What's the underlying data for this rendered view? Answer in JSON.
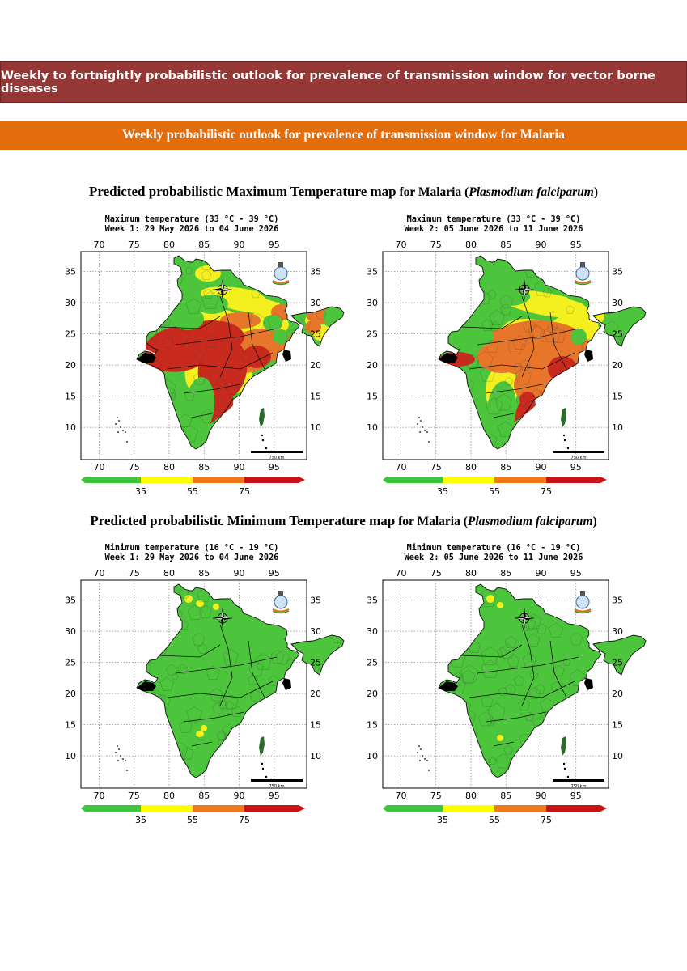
{
  "header": {
    "banner_title": "Weekly to fortnightly probabilistic outlook for prevalence of transmission window for vector borne diseases",
    "sub_banner": "Weekly probabilistic outlook for prevalence of transmission window for Malaria"
  },
  "sections": [
    {
      "title_main": "Predicted probabilistic Maximum Temperature map",
      "title_for": " for Malaria (",
      "title_species": "Plasmodium falciparum",
      "title_close": ")",
      "maps": [
        {
          "line1": "Maximum temperature (33 °C - 39 °C)",
          "line2": "Week 1: 29 May 2026 to 04 June 2026",
          "variant": "max1"
        },
        {
          "line1": "Maximum temperature (33 °C - 39 °C)",
          "line2": "Week 2: 05 June 2026 to 11 June 2026",
          "variant": "max2"
        }
      ]
    },
    {
      "title_main": "Predicted probabilistic Minimum Temperature map",
      "title_for": " for Malaria (",
      "title_species": "Plasmodium falciparum",
      "title_close": ")",
      "maps": [
        {
          "line1": "Minimum temperature (16 °C - 19 °C)",
          "line2": "Week 1: 29 May 2026 to 04 June 2026",
          "variant": "min1"
        },
        {
          "line1": "Minimum temperature (16 °C - 19 °C)",
          "line2": "Week 2: 05 June 2026 to 11 June 2026",
          "variant": "min2"
        }
      ]
    }
  ],
  "map_axes": {
    "lon_ticks": [
      "70",
      "75",
      "80",
      "85",
      "90",
      "95"
    ],
    "lat_ticks": [
      "35",
      "30",
      "25",
      "20",
      "15",
      "10"
    ],
    "scale_bar_label": "750 km"
  },
  "colorbar": {
    "labels": [
      "35",
      "55",
      "75"
    ],
    "colors": [
      "#3cc63c",
      "#ffff00",
      "#f07818",
      "#c81414"
    ]
  },
  "palette": {
    "green": "#4cc43c",
    "yellow": "#f4f020",
    "orange": "#e8762a",
    "red": "#c82a1e"
  }
}
